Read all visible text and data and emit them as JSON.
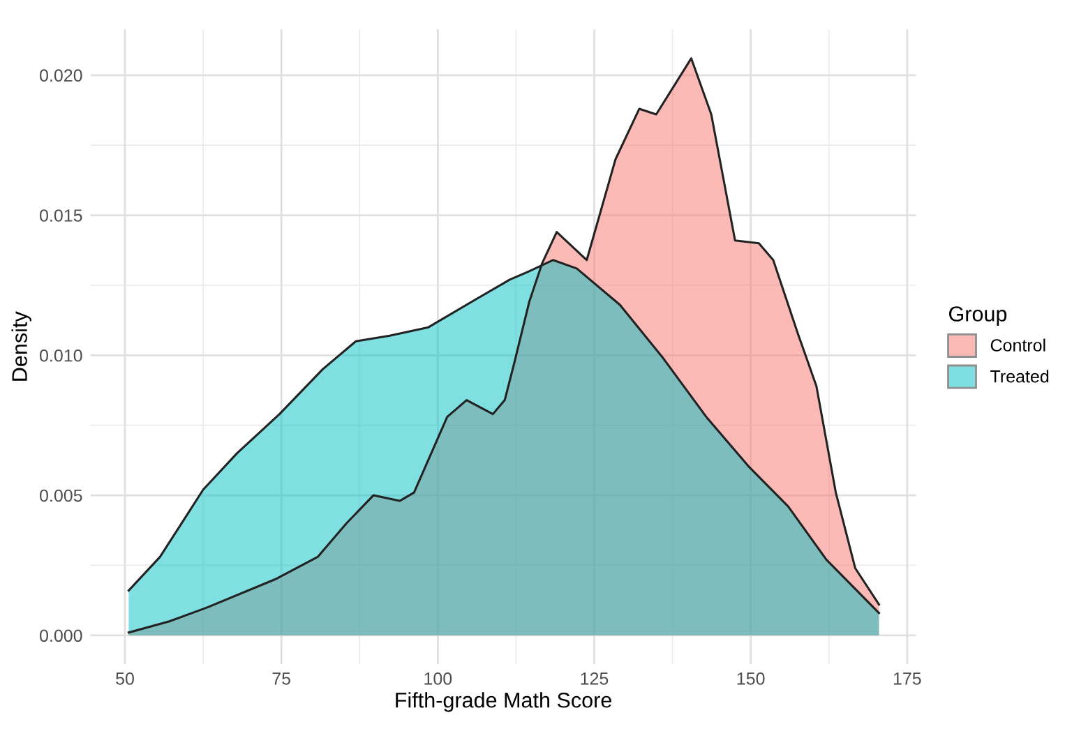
{
  "chart_data": {
    "type": "area",
    "xlabel": "Fifth-grade Math Score",
    "ylabel": "Density",
    "legend_title": "Group",
    "legend": "right",
    "grid": true,
    "xlim": [
      44.5,
      176.4
    ],
    "ylim": [
      -0.00103,
      0.02163
    ],
    "xticks": [
      50,
      75,
      100,
      125,
      150,
      175
    ],
    "yticks": [
      {
        "value": 0,
        "label": "0.000"
      },
      {
        "value": 0.005,
        "label": "0.005"
      },
      {
        "value": 0.01,
        "label": "0.010"
      },
      {
        "value": 0.015,
        "label": "0.015"
      },
      {
        "value": 0.02,
        "label": "0.020"
      }
    ],
    "series": [
      {
        "name": "Control",
        "color": "#F8766D",
        "x": [
          50.6,
          57.1,
          63.2,
          74,
          80.8,
          85.4,
          89.7,
          93.9,
          96.2,
          101.5,
          104.6,
          108.8,
          110.7,
          112.3,
          114.6,
          116.7,
          119.0,
          123.8,
          128.4,
          132.2,
          134.9,
          140.5,
          143.7,
          147.5,
          151.3,
          153.6,
          157.5,
          160.5,
          163.6,
          166.7,
          170.5
        ],
        "values": [
          0.0001,
          0.0005,
          0.001,
          0.002,
          0.0028,
          0.004,
          0.005,
          0.0048,
          0.0051,
          0.0078,
          0.0084,
          0.0079,
          0.0084,
          0.0098,
          0.0119,
          0.0133,
          0.0144,
          0.0134,
          0.017,
          0.0188,
          0.0186,
          0.0206,
          0.0186,
          0.0141,
          0.014,
          0.0134,
          0.0108,
          0.0089,
          0.0051,
          0.0024,
          0.0011
        ]
      },
      {
        "name": "Treated",
        "color": "#00BFC4",
        "x": [
          50.6,
          55.6,
          62.5,
          67.9,
          74.7,
          81.6,
          86.9,
          92.3,
          98.5,
          106.1,
          111.5,
          114.6,
          118.4,
          122.2,
          129.1,
          136.0,
          142.9,
          149.8,
          156.0,
          162.1,
          170.5
        ],
        "values": [
          0.0016,
          0.0028,
          0.0052,
          0.0065,
          0.0079,
          0.0095,
          0.0105,
          0.0107,
          0.011,
          0.012,
          0.0127,
          0.013,
          0.0134,
          0.0131,
          0.0118,
          0.0099,
          0.0078,
          0.006,
          0.0046,
          0.0027,
          0.0008
        ]
      }
    ]
  }
}
